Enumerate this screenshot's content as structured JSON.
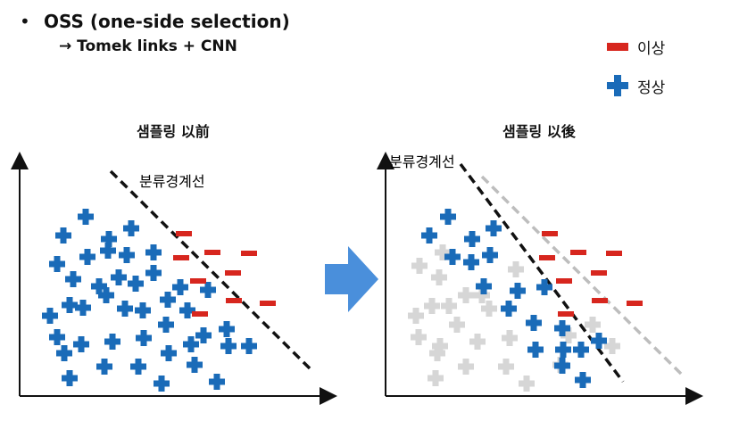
{
  "heading": {
    "bullet": "•",
    "title": "OSS (one-side selection)",
    "subtitle": "→ Tomek links + CNN"
  },
  "legend": {
    "items": [
      {
        "label": "이상",
        "marker": "red-dash",
        "color": "#d7261e"
      },
      {
        "label": "정상",
        "marker": "blue-plus",
        "color": "#1a6bb8"
      }
    ]
  },
  "colors": {
    "abnormal": "#d7261e",
    "normal": "#1a6bb8",
    "removed": "#d6d6d6",
    "arrow": "#4a8fdb",
    "axis": "#111111",
    "old_boundary": "#bdbdbd"
  },
  "panels": {
    "before": {
      "title": "샘플링 以前",
      "boundary_label": "분류경계선",
      "normal": [
        [
          96,
          243
        ],
        [
          71,
          264
        ],
        [
          122,
          268
        ],
        [
          147,
          256
        ],
        [
          64,
          296
        ],
        [
          98,
          288
        ],
        [
          121,
          281
        ],
        [
          142,
          286
        ],
        [
          172,
          283
        ],
        [
          82,
          313
        ],
        [
          111,
          321
        ],
        [
          133,
          311
        ],
        [
          152,
          318
        ],
        [
          172,
          306
        ],
        [
          202,
          322
        ],
        [
          56,
          354
        ],
        [
          78,
          342
        ],
        [
          93,
          345
        ],
        [
          119,
          331
        ],
        [
          140,
          346
        ],
        [
          160,
          348
        ],
        [
          188,
          336
        ],
        [
          210,
          348
        ],
        [
          233,
          325
        ],
        [
          64,
          378
        ],
        [
          91,
          386
        ],
        [
          126,
          383
        ],
        [
          161,
          379
        ],
        [
          186,
          364
        ],
        [
          228,
          376
        ],
        [
          254,
          369
        ],
        [
          72,
          396
        ],
        [
          189,
          396
        ],
        [
          214,
          386
        ],
        [
          256,
          388
        ],
        [
          279,
          388
        ],
        [
          78,
          424
        ],
        [
          117,
          411
        ],
        [
          155,
          411
        ],
        [
          181,
          430
        ],
        [
          218,
          409
        ],
        [
          243,
          428
        ]
      ],
      "abnormal": [
        [
          206,
          262
        ],
        [
          238,
          283
        ],
        [
          279,
          284
        ],
        [
          203,
          289
        ],
        [
          261,
          306
        ],
        [
          222,
          315
        ],
        [
          262,
          337
        ],
        [
          300,
          340
        ],
        [
          224,
          352
        ]
      ]
    },
    "after": {
      "title": "샘플링 以後",
      "boundary_label": "분류경계선",
      "removed": [
        [
          496,
          283
        ],
        [
          470,
          298
        ],
        [
          492,
          311
        ],
        [
          522,
          331
        ],
        [
          466,
          354
        ],
        [
          484,
          343
        ],
        [
          503,
          343
        ],
        [
          540,
          331
        ],
        [
          548,
          346
        ],
        [
          469,
          378
        ],
        [
          493,
          388
        ],
        [
          535,
          383
        ],
        [
          571,
          379
        ],
        [
          490,
          396
        ],
        [
          522,
          411
        ],
        [
          567,
          411
        ],
        [
          488,
          424
        ],
        [
          590,
          430
        ],
        [
          628,
          409
        ],
        [
          512,
          364
        ],
        [
          578,
          302
        ],
        [
          637,
          376
        ],
        [
          664,
          364
        ],
        [
          686,
          388
        ]
      ],
      "normal": [
        [
          502,
          243
        ],
        [
          481,
          264
        ],
        [
          529,
          268
        ],
        [
          553,
          256
        ],
        [
          507,
          288
        ],
        [
          528,
          294
        ],
        [
          549,
          286
        ],
        [
          542,
          321
        ],
        [
          570,
          346
        ],
        [
          580,
          326
        ],
        [
          610,
          322
        ],
        [
          598,
          362
        ],
        [
          630,
          368
        ],
        [
          600,
          392
        ],
        [
          631,
          392
        ],
        [
          651,
          392
        ],
        [
          671,
          382
        ],
        [
          630,
          410
        ],
        [
          653,
          426
        ]
      ],
      "abnormal": [
        [
          616,
          262
        ],
        [
          648,
          283
        ],
        [
          688,
          284
        ],
        [
          613,
          289
        ],
        [
          671,
          306
        ],
        [
          632,
          315
        ],
        [
          672,
          337
        ],
        [
          711,
          340
        ],
        [
          634,
          352
        ]
      ]
    }
  }
}
